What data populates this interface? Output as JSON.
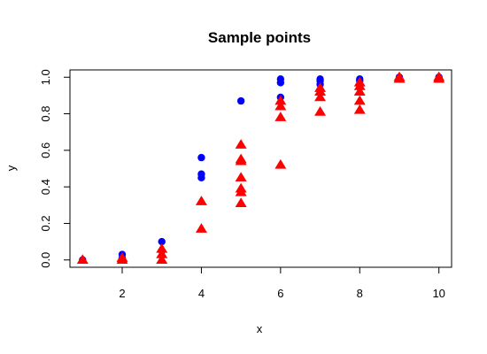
{
  "chart_data": {
    "type": "scatter",
    "title": "Sample points",
    "xlabel": "x",
    "ylabel": "y",
    "xlim": [
      0.68,
      10.32
    ],
    "ylim": [
      -0.04,
      1.04
    ],
    "grid": false,
    "x_ticks": [
      "2",
      "4",
      "6",
      "8",
      "10"
    ],
    "y_ticks": [
      "0.0",
      "0.2",
      "0.4",
      "0.6",
      "0.8",
      "1.0"
    ],
    "series": [
      {
        "marker": "circle",
        "color": "#0000ff",
        "points": [
          [
            1,
            0.0
          ],
          [
            2,
            0.03
          ],
          [
            2,
            0.01
          ],
          [
            3,
            0.1
          ],
          [
            3,
            0.05
          ],
          [
            4,
            0.56
          ],
          [
            4,
            0.47
          ],
          [
            4,
            0.45
          ],
          [
            5,
            0.87
          ],
          [
            6,
            0.99
          ],
          [
            6,
            0.97
          ],
          [
            6,
            0.89
          ],
          [
            7,
            0.99
          ],
          [
            7,
            0.98
          ],
          [
            7,
            0.96
          ],
          [
            8,
            0.99
          ],
          [
            8,
            0.98
          ],
          [
            9,
            1.0
          ],
          [
            10,
            1.0
          ]
        ]
      },
      {
        "marker": "triangle",
        "color": "#ff0000",
        "points": [
          [
            1,
            0.0
          ],
          [
            2,
            0.0
          ],
          [
            2,
            0.01
          ],
          [
            3,
            0.0
          ],
          [
            3,
            0.03
          ],
          [
            3,
            0.06
          ],
          [
            4,
            0.32
          ],
          [
            4,
            0.17
          ],
          [
            5,
            0.63
          ],
          [
            5,
            0.55
          ],
          [
            5,
            0.54
          ],
          [
            5,
            0.45
          ],
          [
            5,
            0.39
          ],
          [
            5,
            0.37
          ],
          [
            5,
            0.31
          ],
          [
            6,
            0.87
          ],
          [
            6,
            0.84
          ],
          [
            6,
            0.78
          ],
          [
            6,
            0.52
          ],
          [
            7,
            0.94
          ],
          [
            7,
            0.92
          ],
          [
            7,
            0.89
          ],
          [
            7,
            0.81
          ],
          [
            8,
            0.97
          ],
          [
            8,
            0.95
          ],
          [
            8,
            0.92
          ],
          [
            8,
            0.87
          ],
          [
            8,
            0.82
          ],
          [
            9,
            1.0
          ],
          [
            9,
            0.99
          ],
          [
            10,
            1.0
          ],
          [
            10,
            0.99
          ]
        ]
      }
    ]
  }
}
